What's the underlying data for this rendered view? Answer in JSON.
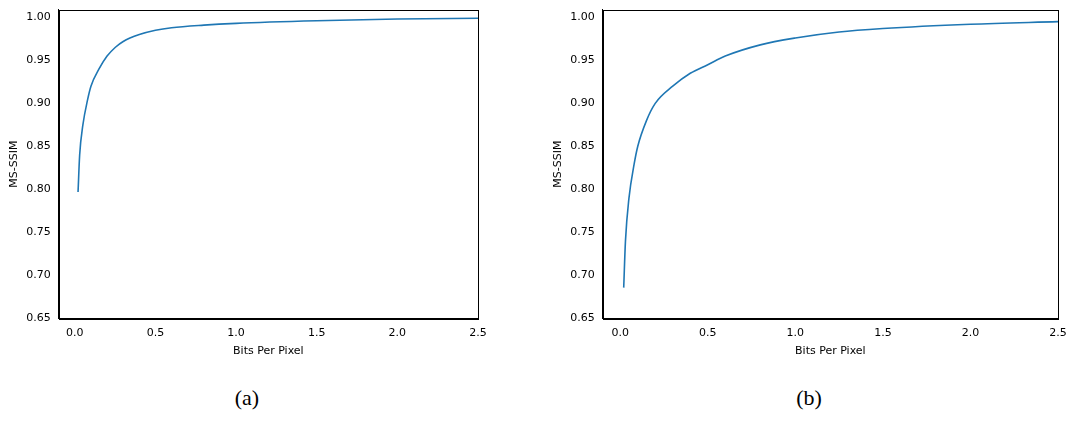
{
  "chart_data": [
    {
      "type": "line",
      "caption": "(a)",
      "xlabel": "Bits Per Pixel",
      "ylabel": "MS-SSIM",
      "color": "#1f77b4",
      "grid": false,
      "x": [
        0.02,
        0.03,
        0.05,
        0.08,
        0.1,
        0.15,
        0.2,
        0.25,
        0.3,
        0.4,
        0.5,
        0.6,
        0.8,
        1.0,
        1.5,
        2.0,
        2.5
      ],
      "values": [
        0.797,
        0.84,
        0.875,
        0.905,
        0.92,
        0.94,
        0.955,
        0.965,
        0.972,
        0.98,
        0.985,
        0.988,
        0.991,
        0.993,
        0.996,
        0.998,
        0.999
      ],
      "xlim": [
        -0.1,
        2.5
      ],
      "ylim": [
        0.65,
        1.009
      ],
      "xticks": [
        {
          "value": 0,
          "label": "0.0"
        },
        0.5,
        {
          "value": 1,
          "label": "1.0"
        },
        1.5,
        {
          "value": 2,
          "label": "2.0"
        },
        2.5
      ],
      "yticks": [
        0.65,
        {
          "value": 0.7,
          "label": "0.70"
        },
        0.75,
        {
          "value": 0.8,
          "label": "0.80"
        },
        0.85,
        {
          "value": 0.9,
          "label": "0.90"
        },
        0.95,
        {
          "value": 1,
          "label": "1.00"
        }
      ]
    },
    {
      "type": "line",
      "caption": "(b)",
      "xlabel": "Bits Per Pixel",
      "ylabel": "MS-SSIM",
      "color": "#1f77b4",
      "grid": false,
      "x": [
        0.02,
        0.03,
        0.05,
        0.08,
        0.1,
        0.15,
        0.2,
        0.3,
        0.4,
        0.5,
        0.6,
        0.8,
        1.0,
        1.25,
        1.5,
        2.0,
        2.5
      ],
      "values": [
        0.686,
        0.74,
        0.79,
        0.83,
        0.85,
        0.88,
        0.9,
        0.92,
        0.935,
        0.945,
        0.955,
        0.968,
        0.976,
        0.983,
        0.987,
        0.992,
        0.995
      ],
      "xlim": [
        -0.1,
        2.5
      ],
      "ylim": [
        0.65,
        1.009
      ],
      "xticks": [
        {
          "value": 0,
          "label": "0.0"
        },
        0.5,
        {
          "value": 1,
          "label": "1.0"
        },
        1.5,
        {
          "value": 2,
          "label": "2.0"
        },
        2.5
      ],
      "yticks": [
        0.65,
        {
          "value": 0.7,
          "label": "0.70"
        },
        0.75,
        {
          "value": 0.8,
          "label": "0.80"
        },
        0.85,
        {
          "value": 0.9,
          "label": "0.90"
        },
        0.95,
        {
          "value": 1,
          "label": "1.00"
        }
      ]
    }
  ]
}
